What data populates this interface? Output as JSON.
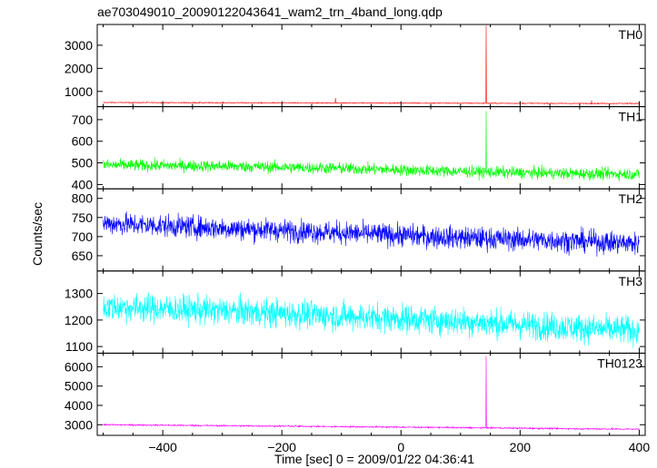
{
  "chart_data": {
    "type": "line",
    "title": "ae703049010_20090122043641_wam2_trn_4band_long.qdp",
    "xlabel": "Time [sec] 0 = 2009/01/22 04:36:41",
    "ylabel": "Counts/sec",
    "xlim": [
      -510,
      410
    ],
    "x_ticks": [
      -400,
      -200,
      0,
      200,
      400
    ],
    "panels": [
      {
        "name": "TH0",
        "color": "#ff0000",
        "ylim": [
          340,
          3900
        ],
        "y_ticks": [
          1000,
          2000,
          3000
        ],
        "baseline": [
          [
            -500,
            520
          ],
          [
            -300,
            510
          ],
          [
            -100,
            500
          ],
          [
            100,
            490
          ],
          [
            300,
            480
          ],
          [
            400,
            480
          ]
        ],
        "noise": 40,
        "spikes": [
          {
            "x": 143,
            "y": 3850
          },
          {
            "x": -110,
            "y": 720
          },
          {
            "x": 320,
            "y": 610
          }
        ]
      },
      {
        "name": "TH1",
        "color": "#00ff00",
        "ylim": [
          380,
          760
        ],
        "y_ticks": [
          400,
          500,
          600,
          700
        ],
        "baseline": [
          [
            -500,
            490
          ],
          [
            -300,
            485
          ],
          [
            -100,
            475
          ],
          [
            100,
            460
          ],
          [
            300,
            450
          ],
          [
            400,
            448
          ]
        ],
        "noise": 55,
        "spikes": [
          {
            "x": 143,
            "y": 740
          }
        ]
      },
      {
        "name": "TH2",
        "color": "#0000ff",
        "ylim": [
          610,
          825
        ],
        "y_ticks": [
          650,
          700,
          750,
          800
        ],
        "baseline": [
          [
            -500,
            735
          ],
          [
            -300,
            722
          ],
          [
            -100,
            710
          ],
          [
            100,
            697
          ],
          [
            300,
            688
          ],
          [
            400,
            682
          ]
        ],
        "noise": 60,
        "spikes": []
      },
      {
        "name": "TH3",
        "color": "#00ffff",
        "ylim": [
          1075,
          1385
        ],
        "y_ticks": [
          1100,
          1200,
          1300
        ],
        "baseline": [
          [
            -500,
            1250
          ],
          [
            -300,
            1235
          ],
          [
            -100,
            1215
          ],
          [
            100,
            1195
          ],
          [
            300,
            1170
          ],
          [
            400,
            1160
          ]
        ],
        "noise": 110,
        "spikes": []
      },
      {
        "name": "TH0123",
        "color": "#ff00ff",
        "ylim": [
          2450,
          6700
        ],
        "y_ticks": [
          3000,
          4000,
          5000,
          6000
        ],
        "baseline": [
          [
            -500,
            3000
          ],
          [
            -300,
            2950
          ],
          [
            -100,
            2900
          ],
          [
            100,
            2850
          ],
          [
            300,
            2790
          ],
          [
            400,
            2770
          ]
        ],
        "noise": 80,
        "spikes": [
          {
            "x": 143,
            "y": 6550
          }
        ]
      }
    ]
  }
}
